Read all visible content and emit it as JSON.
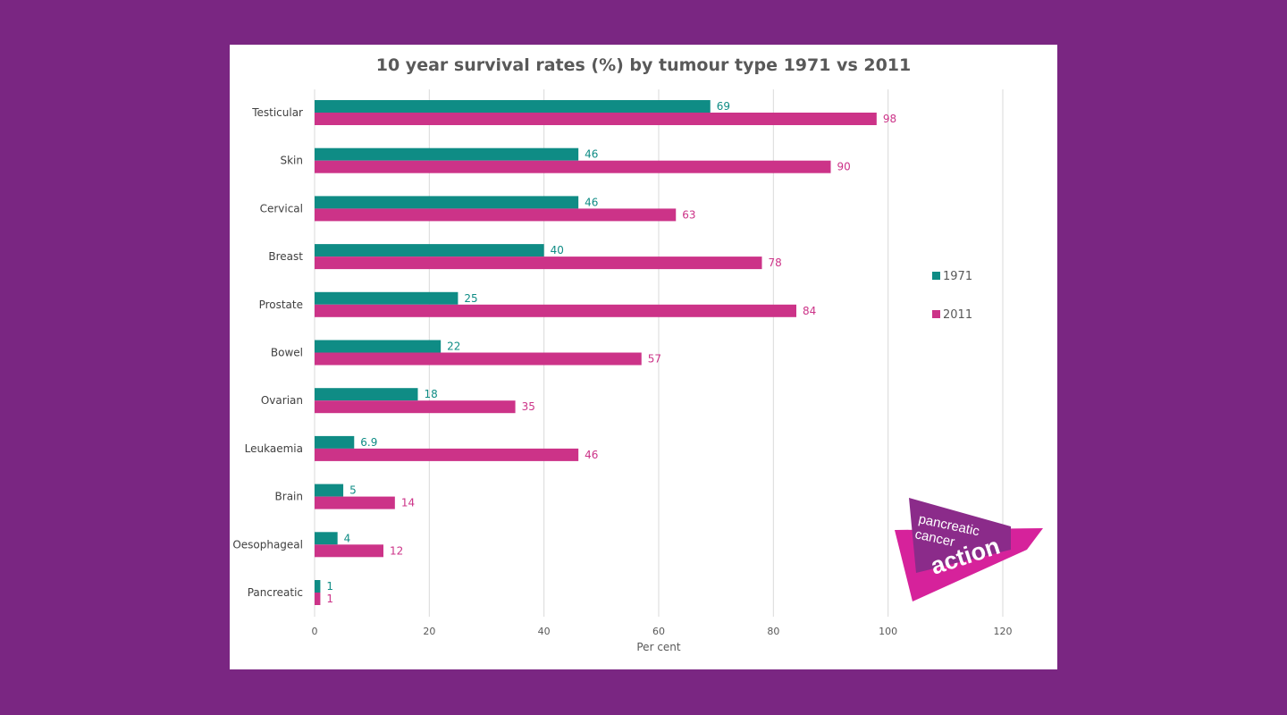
{
  "chart_data": {
    "type": "bar",
    "orientation": "horizontal",
    "title": "10 year survival rates (%) by tumour type 1971 vs 2011",
    "xlabel": "Per cent",
    "ylabel": "",
    "xlim": [
      0,
      120
    ],
    "x_ticks": [
      0,
      20,
      40,
      60,
      80,
      100,
      120
    ],
    "grid": "vertical",
    "legend_position": "right",
    "categories": [
      "Testicular",
      "Skin",
      "Cervical",
      "Breast",
      "Prostate",
      "Bowel",
      "Ovarian",
      "Leukaemia",
      "Brain",
      "Oesophageal",
      "Pancreatic"
    ],
    "series": [
      {
        "name": "1971",
        "color": "#0f8c85",
        "values": [
          69,
          46,
          46,
          40,
          25,
          22,
          18,
          6.9,
          5,
          4,
          1
        ],
        "labels": [
          "69",
          "46",
          "46",
          "40",
          "25",
          "22",
          "18",
          "6.9",
          "5",
          "4",
          "1"
        ]
      },
      {
        "name": "2011",
        "color": "#cc3388",
        "values": [
          98,
          90,
          63,
          78,
          84,
          57,
          35,
          46,
          14,
          12,
          1
        ],
        "labels": [
          "98",
          "90",
          "63",
          "78",
          "84",
          "57",
          "35",
          "46",
          "14",
          "12",
          "1"
        ]
      }
    ]
  },
  "logo": {
    "words": [
      "pancreatic",
      "cancer",
      "action"
    ],
    "colors": {
      "magenta": "#d6229b",
      "purple": "#8b2b8a"
    }
  }
}
